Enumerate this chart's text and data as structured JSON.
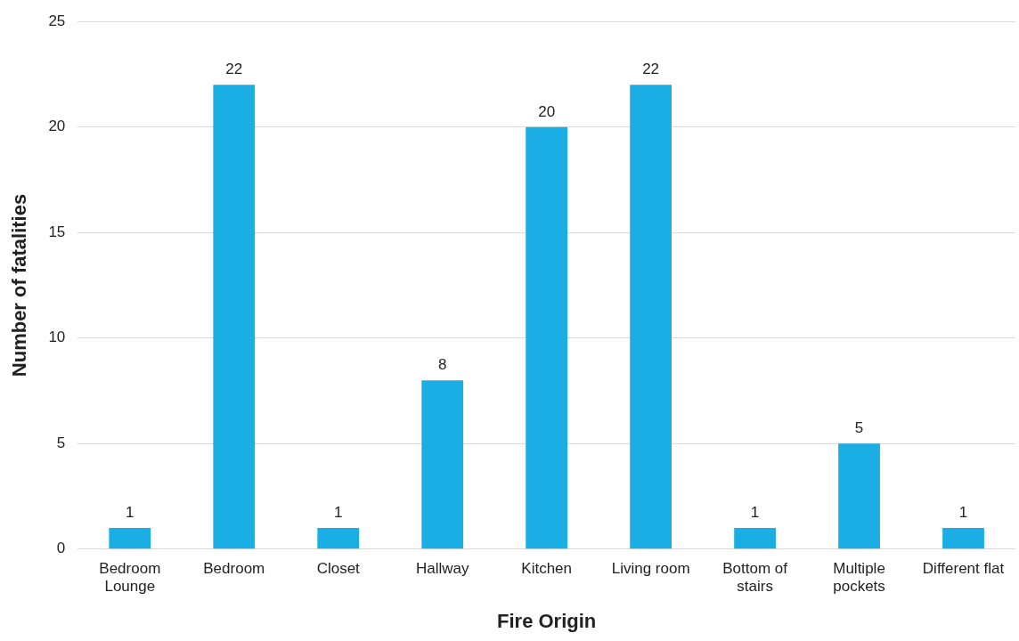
{
  "chart_data": {
    "type": "bar",
    "xlabel": "Fire Origin",
    "ylabel": "Number of fatalities",
    "categories": [
      "Bedroom Lounge",
      "Bedroom",
      "Closet",
      "Hallway",
      "Kitchen",
      "Living room",
      "Bottom of stairs",
      "Multiple pockets",
      "Different flat"
    ],
    "values": [
      1,
      22,
      1,
      8,
      20,
      22,
      1,
      5,
      1
    ],
    "color": "#1aaee5",
    "ylim": [
      0,
      25
    ],
    "yticks": [
      0,
      5,
      10,
      15,
      20,
      25
    ],
    "grid": "y",
    "data_labels": true,
    "legend": false
  }
}
